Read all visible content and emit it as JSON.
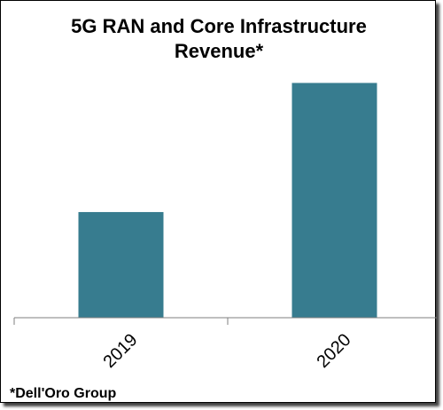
{
  "chart_data": {
    "type": "bar",
    "title_line1": "5G RAN and Core Infrastructure",
    "title_line2": "Revenue*",
    "categories": [
      "2019",
      "2020"
    ],
    "values": [
      0.45,
      1.0
    ],
    "xlabel": "",
    "ylabel": "",
    "ylim": [
      0,
      1.1
    ],
    "grid": false,
    "legend": "none",
    "bar_color": "#377c8f",
    "footnote": "*Dell'Oro Group"
  }
}
